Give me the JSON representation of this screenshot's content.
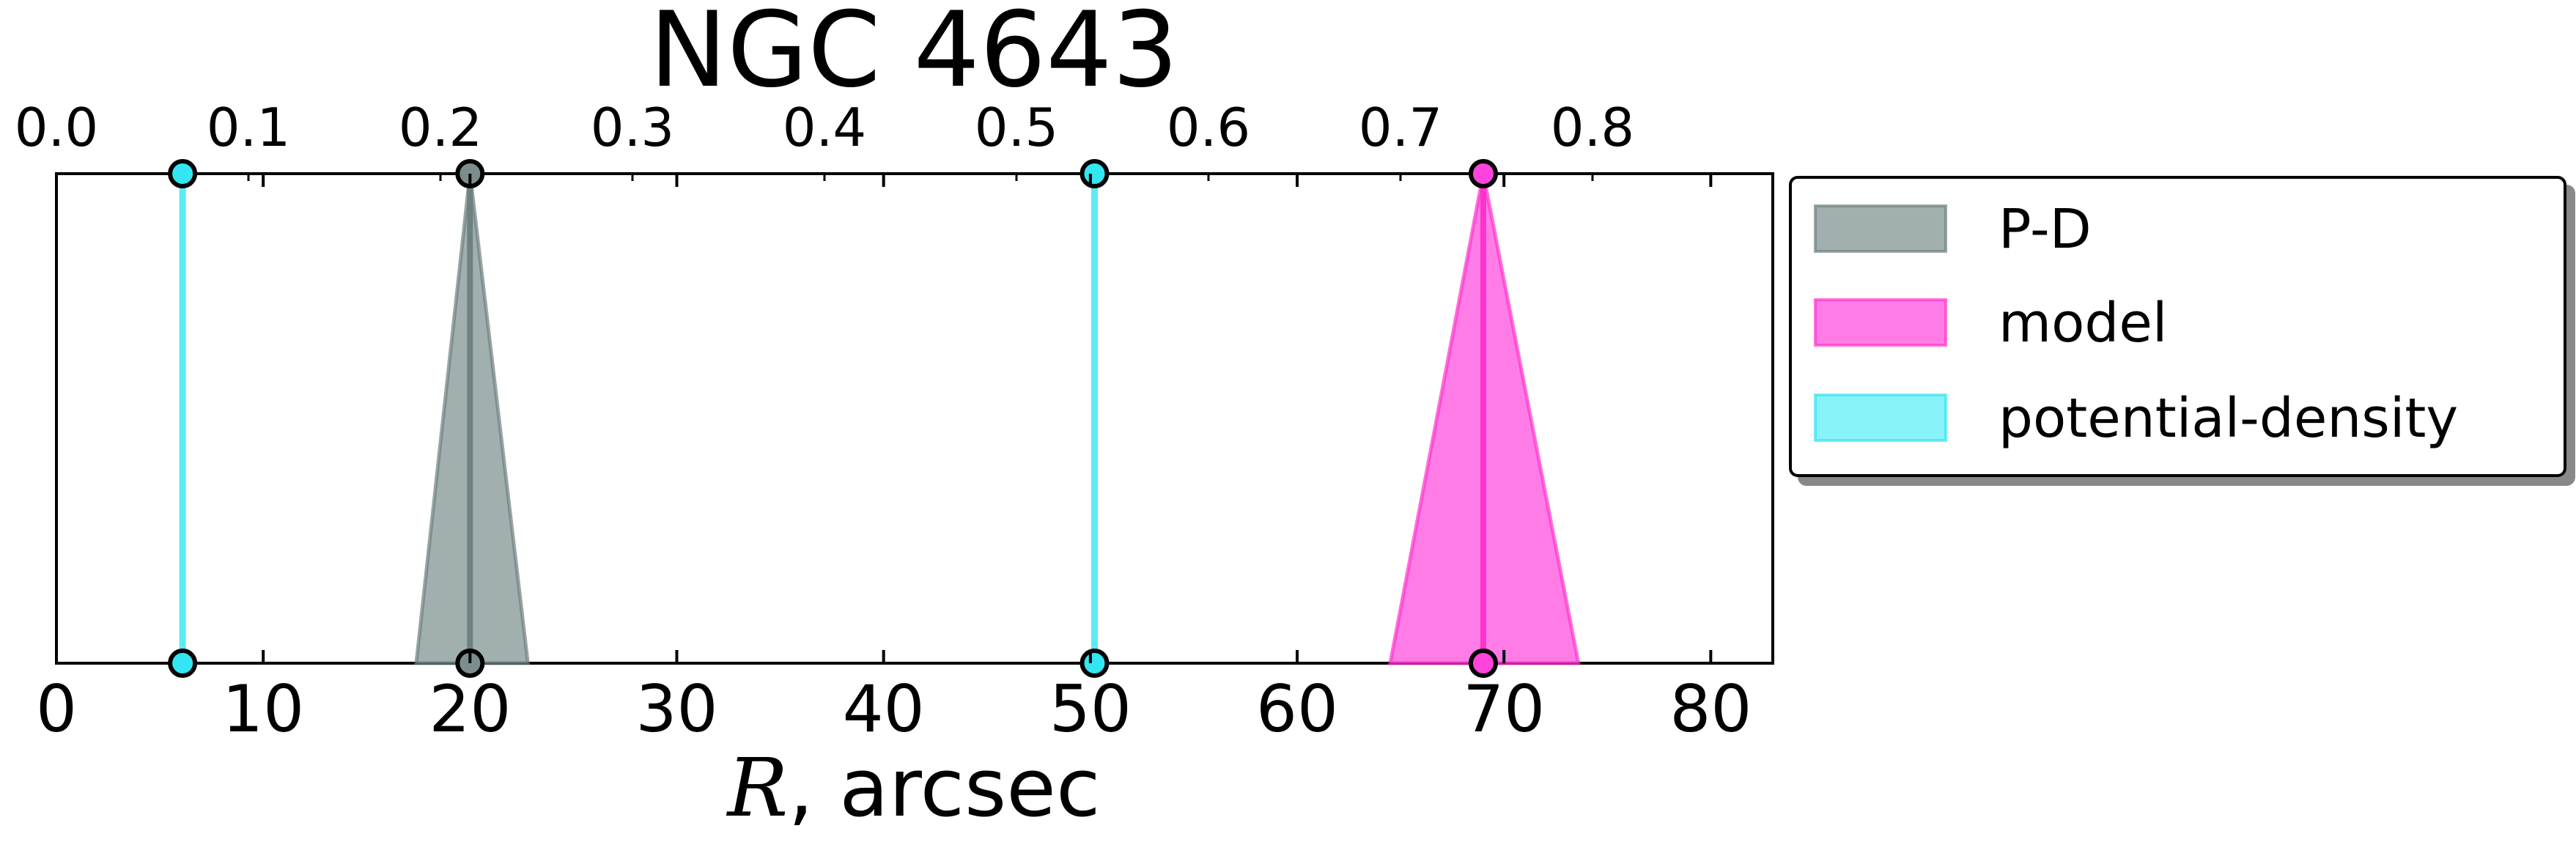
{
  "chart_data": {
    "type": "area",
    "title": "NGC 4643",
    "xlabel_italic": "R",
    "xlabel_rest": ", arcsec",
    "xlim": [
      0,
      83
    ],
    "xticks": [
      "0",
      "10",
      "20",
      "30",
      "40",
      "50",
      "60",
      "70",
      "80"
    ],
    "top_axis": {
      "scale_factor": 0.01077,
      "ticks": [
        "0.0",
        "0.1",
        "0.2",
        "0.3",
        "0.4",
        "0.5",
        "0.6",
        "0.7",
        "0.8"
      ]
    },
    "series": [
      {
        "name": "P-D",
        "color": "#6f8080",
        "fill": "#7b8d8d",
        "center": 20.0,
        "low": 17.4,
        "high": 22.8
      },
      {
        "name": "model",
        "color": "#ff33cc",
        "fill": "#ff44dd",
        "center": 69.0,
        "low": 64.5,
        "high": 73.6
      },
      {
        "name": "potential-density",
        "color": "#33e6f2",
        "fill": "#55eef7",
        "lines": [
          6.1,
          50.2
        ]
      }
    ],
    "legend_position": "right"
  }
}
